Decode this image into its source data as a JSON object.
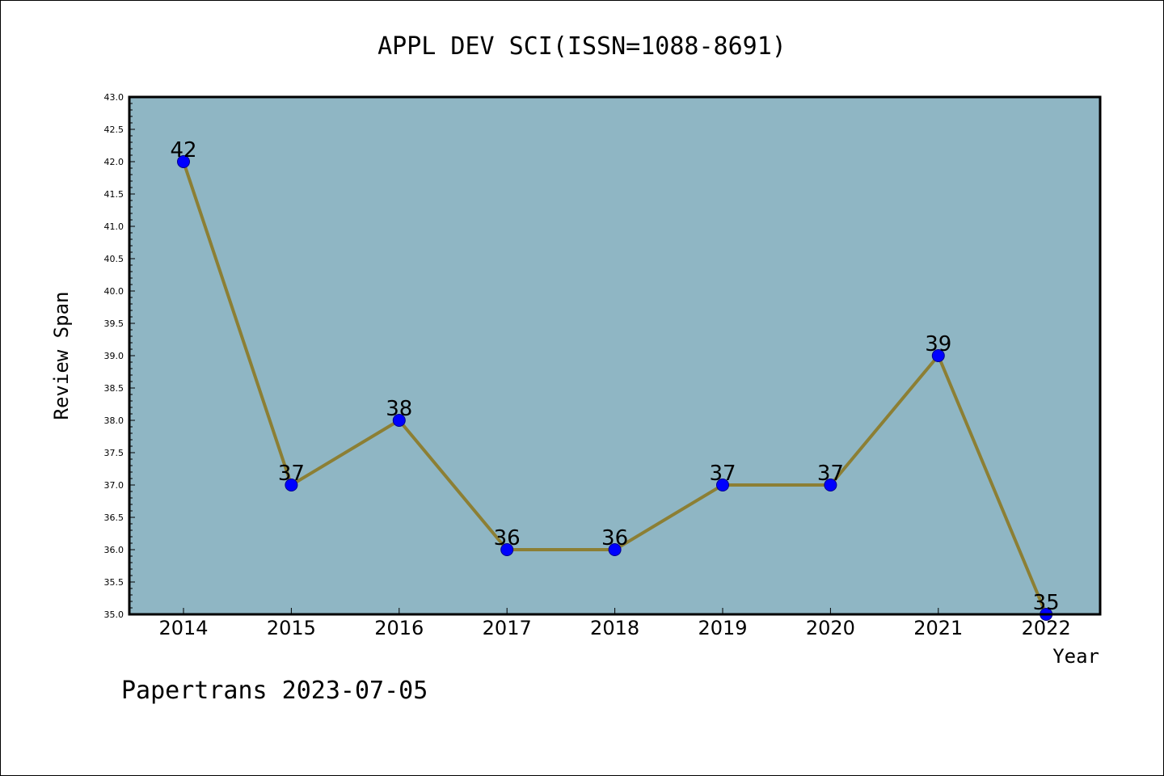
{
  "chart_data": {
    "type": "line",
    "title": "APPL DEV SCI(ISSN=1088-8691)",
    "xlabel": "Year",
    "ylabel": "Review Span",
    "categories": [
      "2014",
      "2015",
      "2016",
      "2017",
      "2018",
      "2019",
      "2020",
      "2021",
      "2022"
    ],
    "series": [
      {
        "values": [
          42,
          37,
          38,
          36,
          36,
          37,
          37,
          39,
          35
        ]
      }
    ],
    "data_labels": [
      "42",
      "37",
      "38",
      "36",
      "36",
      "37",
      "37",
      "39",
      "35"
    ],
    "ylim": [
      35.0,
      43.0
    ],
    "yticks": [
      "35.0",
      "35.5",
      "36.0",
      "36.5",
      "37.0",
      "37.5",
      "38.0",
      "38.5",
      "39.0",
      "39.5",
      "40.0",
      "40.5",
      "41.0",
      "41.5",
      "42.0",
      "42.5",
      "43.0"
    ],
    "grid": false,
    "legend": "none",
    "colors": {
      "plot_background": "#8fb6c4",
      "line": "#8c7f34",
      "marker_fill": "#0000ff",
      "marker_edge": "#00008b"
    }
  },
  "footer": {
    "text": "Papertrans 2023-07-05"
  }
}
